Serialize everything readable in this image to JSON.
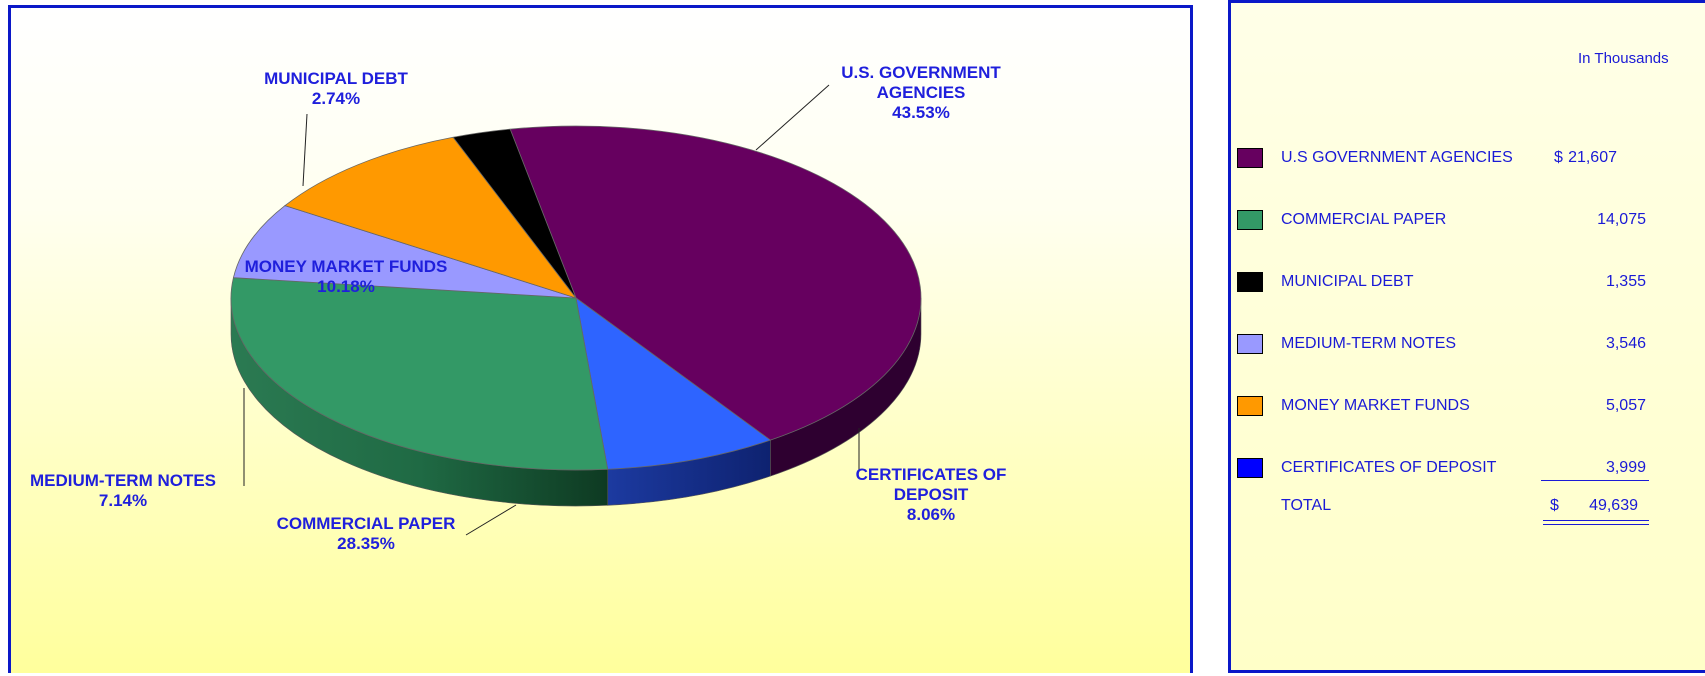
{
  "chart_data": {
    "type": "pie",
    "slices": [
      {
        "key": "us_gov",
        "label": "U.S. GOVERNMENT\nAGENCIES",
        "percent_label": "43.53%",
        "value": 43.53,
        "color": "#66005f"
      },
      {
        "key": "cd",
        "label": "CERTIFICATES OF\nDEPOSIT",
        "percent_label": "8.06%",
        "value": 8.06,
        "color": "#2e64ff"
      },
      {
        "key": "cp",
        "label": "COMMERCIAL PAPER",
        "percent_label": "28.35%",
        "value": 28.35,
        "color": "#339966"
      },
      {
        "key": "mtn",
        "label": "MEDIUM-TERM NOTES",
        "percent_label": "7.14%",
        "value": 7.14,
        "color": "#9999ff"
      },
      {
        "key": "mmf",
        "label": "MONEY MARKET FUNDS",
        "percent_label": "10.18%",
        "value": 10.18,
        "color": "#ff9900"
      },
      {
        "key": "muni",
        "label": "MUNICIPAL DEBT",
        "percent_label": "2.74%",
        "value": 2.74,
        "color": "#000000"
      }
    ]
  },
  "legend": {
    "unit_label": "In Thousands",
    "items": [
      {
        "label": "U.S GOVERNMENT AGENCIES",
        "dollar": "$",
        "amount": "21,607",
        "color": "#66005f"
      },
      {
        "label": "COMMERCIAL PAPER",
        "dollar": "",
        "amount": "14,075",
        "color": "#339966"
      },
      {
        "label": "MUNICIPAL DEBT",
        "dollar": "",
        "amount": "1,355",
        "color": "#000000"
      },
      {
        "label": "MEDIUM-TERM NOTES",
        "dollar": "",
        "amount": "3,546",
        "color": "#9999ff"
      },
      {
        "label": "MONEY MARKET FUNDS",
        "dollar": "",
        "amount": "5,057",
        "color": "#ff9900"
      },
      {
        "label": "CERTIFICATES OF DEPOSIT",
        "dollar": "",
        "amount": "3,999",
        "color": "#0000ff"
      }
    ],
    "total": {
      "label": "TOTAL",
      "dollar": "$",
      "amount": "49,639"
    }
  }
}
